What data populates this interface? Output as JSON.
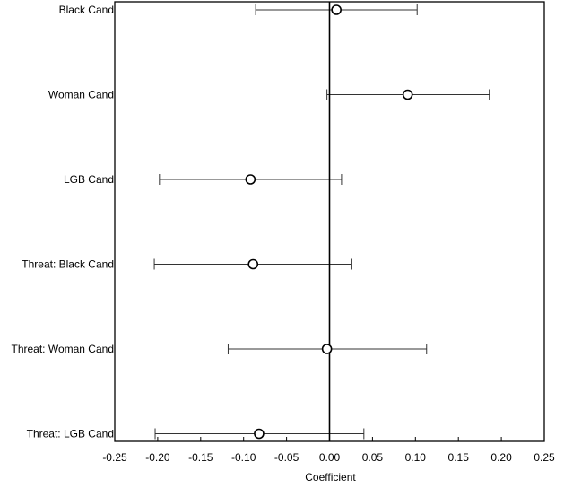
{
  "chart_data": {
    "type": "scatter",
    "subtype": "coefficient-plot-with-error-bars",
    "title": "",
    "xlabel": "Coefficient",
    "ylabel": "",
    "xlim": [
      -0.25,
      0.25
    ],
    "x_ticks": [
      "-0.25",
      "-0.20",
      "-0.15",
      "-0.10",
      "-0.05",
      "0.00",
      "0.05",
      "0.10",
      "0.15",
      "0.20",
      "0.25"
    ],
    "x_tick_values": [
      -0.25,
      -0.2,
      -0.15,
      -0.1,
      -0.05,
      0.0,
      0.05,
      0.1,
      0.15,
      0.2,
      0.25
    ],
    "reference_line_x": 0,
    "grid": false,
    "legend": "none",
    "categories": [
      "Black Cand",
      "Woman Cand",
      "LGB Cand",
      "Threat: Black Cand",
      "Threat: Woman Cand",
      "Threat: LGB Cand"
    ],
    "estimates": [
      0.008,
      0.091,
      -0.092,
      -0.089,
      -0.003,
      -0.082
    ],
    "ci_lower": [
      -0.086,
      -0.003,
      -0.198,
      -0.204,
      -0.118,
      -0.203
    ],
    "ci_upper": [
      0.102,
      0.186,
      0.014,
      0.026,
      0.113,
      0.04
    ],
    "colors": {
      "marker_stroke": "#000000",
      "errorbar": "#333333",
      "frame": "#000000",
      "reference_line": "#000000"
    }
  }
}
